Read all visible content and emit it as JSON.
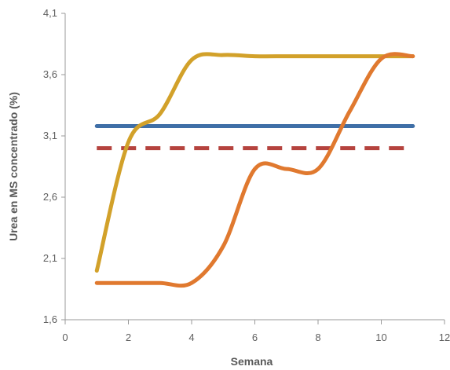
{
  "chart_data": {
    "type": "line",
    "xlabel": "Semana",
    "ylabel": "Urea en MS concentrado (%)",
    "xlim": [
      0,
      12
    ],
    "ylim": [
      1.6,
      4.1
    ],
    "x_ticks": [
      "0",
      "2",
      "4",
      "6",
      "8",
      "10",
      "12"
    ],
    "y_ticks": [
      "1,6",
      "2,1",
      "2,6",
      "3,1",
      "3,6",
      "4,1"
    ],
    "grid": false,
    "legend": "none",
    "series": [
      {
        "color": "#3f6fa7",
        "style": "solid",
        "x": [
          1,
          11
        ],
        "y": [
          3.18,
          3.18
        ]
      },
      {
        "color": "#b5433e",
        "style": "dashed",
        "x": [
          1,
          11
        ],
        "y": [
          3.0,
          3.0
        ]
      },
      {
        "color": "#d2a12a",
        "style": "solid",
        "x": [
          1,
          2,
          3,
          4,
          5,
          6,
          7,
          8,
          9,
          10,
          11
        ],
        "y": [
          2.0,
          3.05,
          3.28,
          3.72,
          3.76,
          3.75,
          3.75,
          3.75,
          3.75,
          3.75,
          3.75
        ]
      },
      {
        "color": "#e0792f",
        "style": "solid",
        "x": [
          1,
          2,
          3,
          4,
          5,
          6,
          7,
          8,
          9,
          10,
          11
        ],
        "y": [
          1.9,
          1.9,
          1.9,
          1.9,
          2.2,
          2.83,
          2.83,
          2.83,
          3.3,
          3.73,
          3.75
        ]
      }
    ]
  }
}
